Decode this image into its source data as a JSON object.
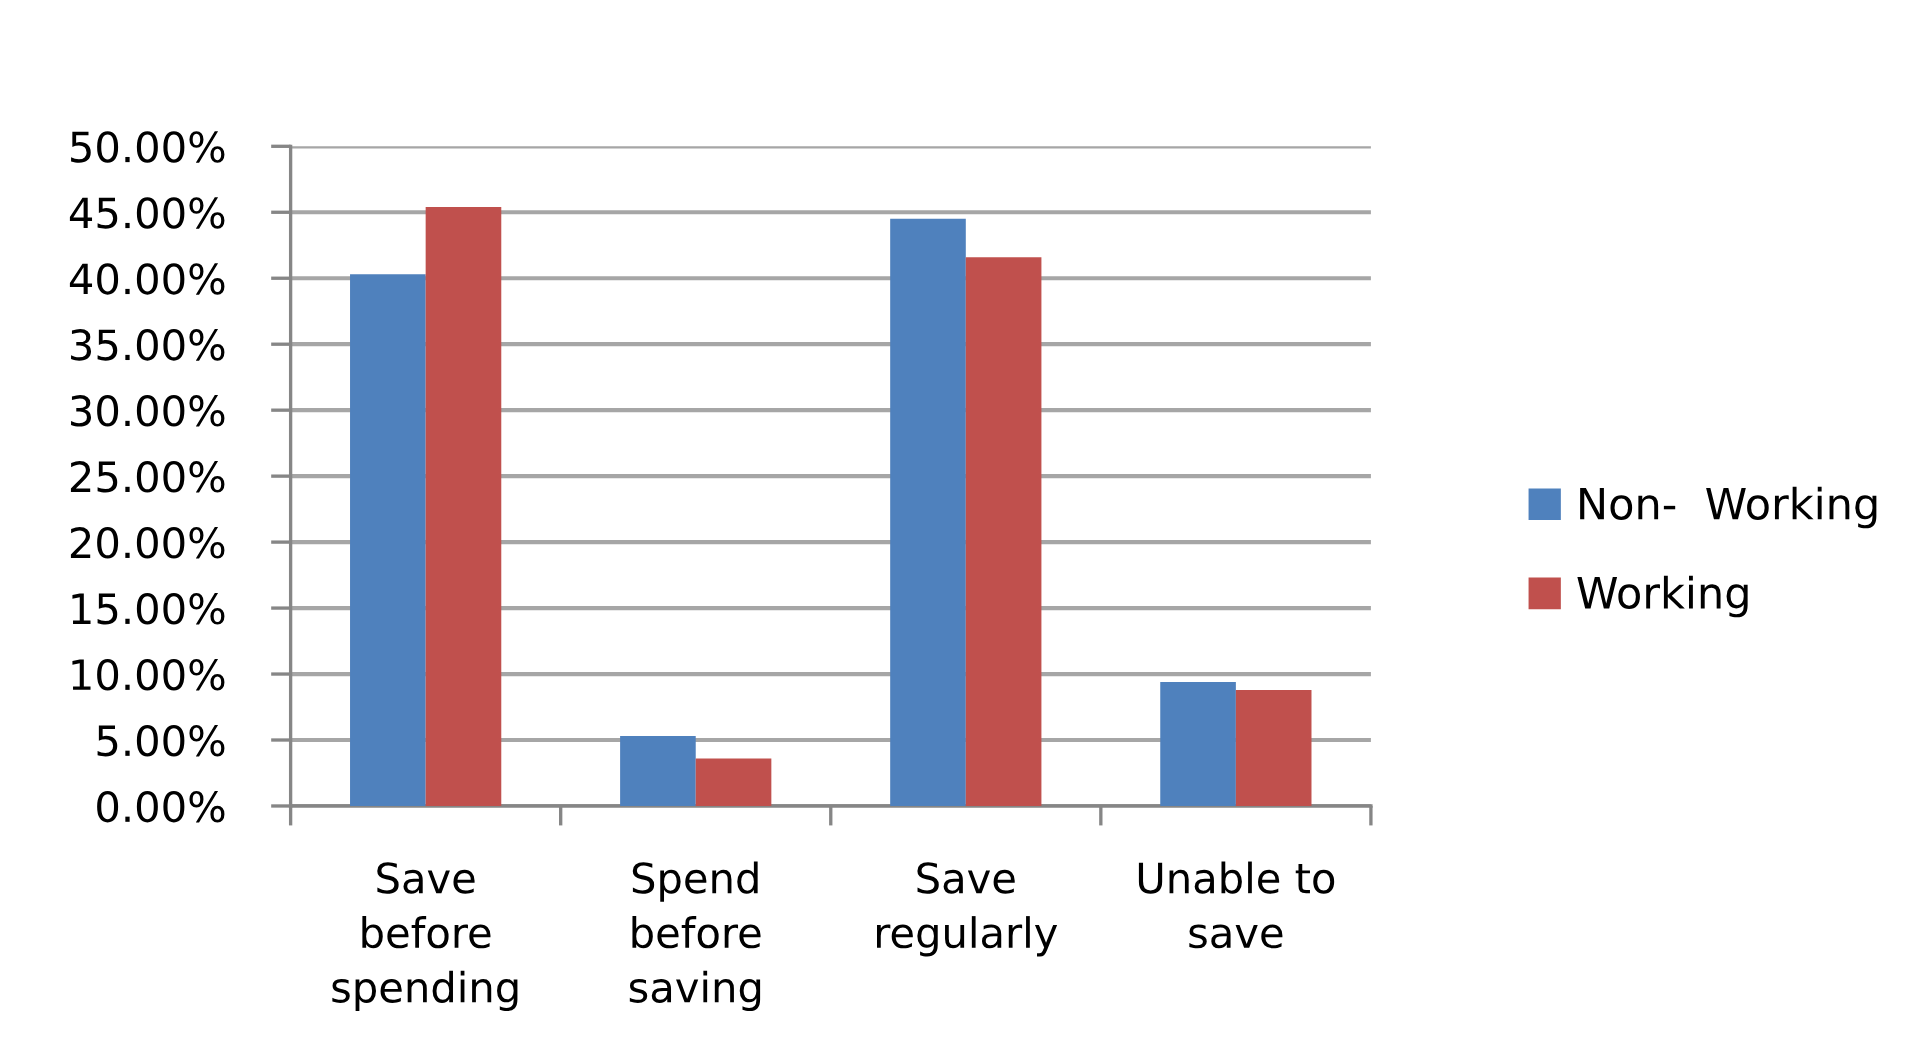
{
  "chart_data": {
    "type": "bar",
    "categories": [
      "Save\nbefore\nspending",
      "Spend\nbefore\nsaving",
      "Save\nregularly",
      "Unable to\nsave"
    ],
    "series": [
      {
        "name": "Non-  Working",
        "color": "#4f81bd",
        "values": [
          40.3,
          5.3,
          44.5,
          9.4
        ]
      },
      {
        "name": "Working",
        "color": "#c0504d",
        "values": [
          45.4,
          3.6,
          41.6,
          8.8
        ]
      }
    ],
    "ylim": [
      0,
      50
    ],
    "yticks": [
      {
        "value": 0,
        "label": "0.00%"
      },
      {
        "value": 5,
        "label": "5.00%"
      },
      {
        "value": 10,
        "label": "10.00%"
      },
      {
        "value": 15,
        "label": "15.00%"
      },
      {
        "value": 20,
        "label": "20.00%"
      },
      {
        "value": 25,
        "label": "25.00%"
      },
      {
        "value": 30,
        "label": "30.00%"
      },
      {
        "value": 35,
        "label": "35.00%"
      },
      {
        "value": 40,
        "label": "40.00%"
      },
      {
        "value": 45,
        "label": "45.00%"
      },
      {
        "value": 50,
        "label": "50.00%"
      }
    ],
    "grid": "y",
    "legend": "right"
  }
}
